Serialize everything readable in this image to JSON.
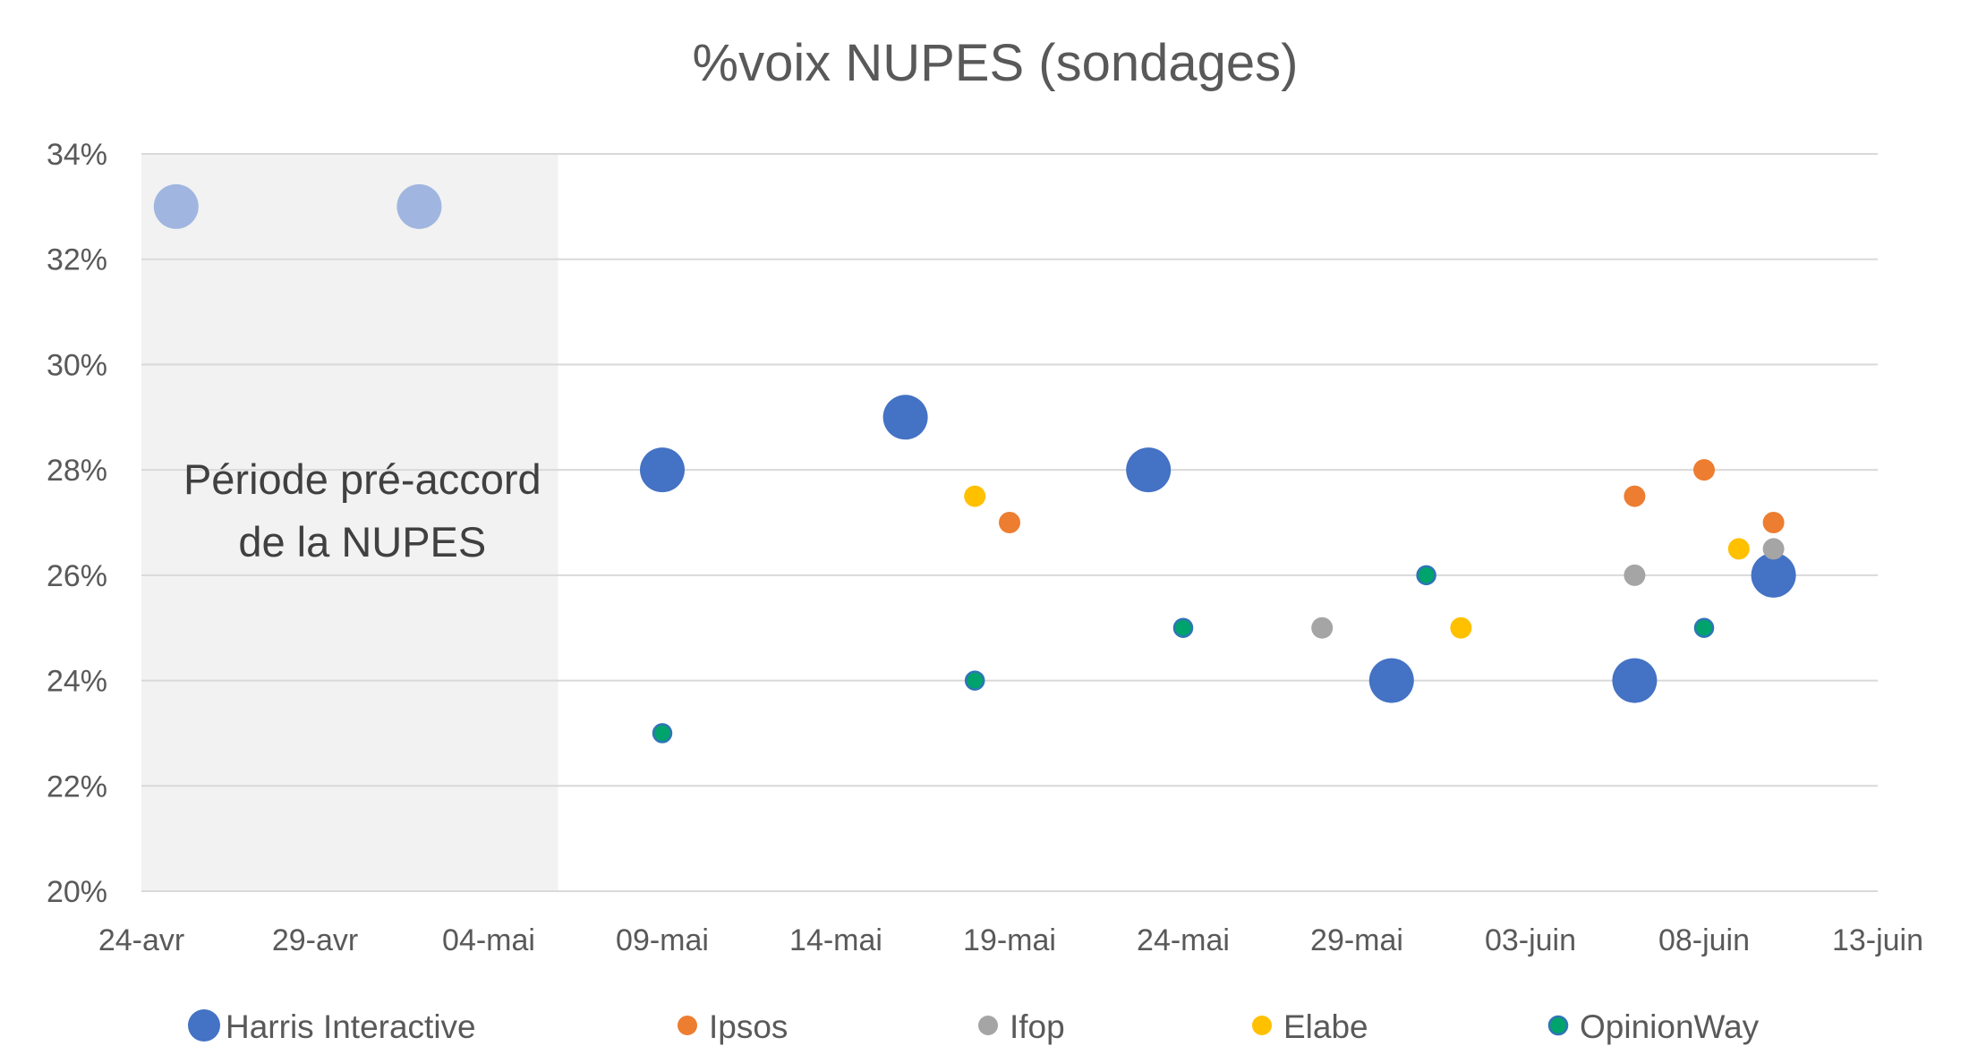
{
  "chart_data": {
    "type": "scatter",
    "title": "%voix NUPES (sondages)",
    "xlabel": "",
    "ylabel": "",
    "x_axis": {
      "type": "date",
      "min": "2022-04-24",
      "max": "2022-06-13",
      "ticks": [
        {
          "date": "2022-04-24",
          "label": "24-avr"
        },
        {
          "date": "2022-04-29",
          "label": "29-avr"
        },
        {
          "date": "2022-05-04",
          "label": "04-mai"
        },
        {
          "date": "2022-05-09",
          "label": "09-mai"
        },
        {
          "date": "2022-05-14",
          "label": "14-mai"
        },
        {
          "date": "2022-05-19",
          "label": "19-mai"
        },
        {
          "date": "2022-05-24",
          "label": "24-mai"
        },
        {
          "date": "2022-05-29",
          "label": "29-mai"
        },
        {
          "date": "2022-06-03",
          "label": "03-juin"
        },
        {
          "date": "2022-06-08",
          "label": "08-juin"
        },
        {
          "date": "2022-06-13",
          "label": "13-juin"
        }
      ]
    },
    "y_axis": {
      "min": 20,
      "max": 34,
      "ticks": [
        {
          "value": 20,
          "label": "20%"
        },
        {
          "value": 22,
          "label": "22%"
        },
        {
          "value": 24,
          "label": "24%"
        },
        {
          "value": 26,
          "label": "26%"
        },
        {
          "value": 28,
          "label": "28%"
        },
        {
          "value": 30,
          "label": "30%"
        },
        {
          "value": 32,
          "label": "32%"
        },
        {
          "value": 34,
          "label": "34%"
        }
      ]
    },
    "grid": true,
    "legend_position": "bottom",
    "shaded_region": {
      "from": "2022-04-24",
      "to": "2022-05-06",
      "label": [
        "Période pré-accord",
        "de la NUPES"
      ],
      "color": "#f2f2f2"
    },
    "series": [
      {
        "name": "Harris Interactive",
        "color": "#4472c4",
        "pre_accord_color": "#a0b6e0",
        "size": "large",
        "points": [
          {
            "x": "2022-04-25",
            "y": 33,
            "pre_accord": true
          },
          {
            "x": "2022-05-02",
            "y": 33,
            "pre_accord": true
          },
          {
            "x": "2022-05-09",
            "y": 28
          },
          {
            "x": "2022-05-16",
            "y": 29
          },
          {
            "x": "2022-05-23",
            "y": 28
          },
          {
            "x": "2022-05-30",
            "y": 24
          },
          {
            "x": "2022-06-06",
            "y": 24
          },
          {
            "x": "2022-06-10",
            "y": 26
          }
        ]
      },
      {
        "name": "Ipsos",
        "color": "#ed7d31",
        "size": "small",
        "points": [
          {
            "x": "2022-05-19",
            "y": 27
          },
          {
            "x": "2022-06-06",
            "y": 27.5
          },
          {
            "x": "2022-06-08",
            "y": 28
          },
          {
            "x": "2022-06-10",
            "y": 27
          }
        ]
      },
      {
        "name": "Ifop",
        "color": "#a5a5a5",
        "size": "small",
        "points": [
          {
            "x": "2022-05-28",
            "y": 25
          },
          {
            "x": "2022-06-06",
            "y": 26
          },
          {
            "x": "2022-06-10",
            "y": 26.5
          }
        ]
      },
      {
        "name": "Elabe",
        "color": "#ffc000",
        "size": "small",
        "points": [
          {
            "x": "2022-05-18",
            "y": 27.5
          },
          {
            "x": "2022-06-01",
            "y": 25
          },
          {
            "x": "2022-06-09",
            "y": 26.5
          }
        ]
      },
      {
        "name": "OpinionWay",
        "color": "#00a36c",
        "edge_color": "#2e75b6",
        "size": "tiny",
        "points": [
          {
            "x": "2022-05-09",
            "y": 23
          },
          {
            "x": "2022-05-18",
            "y": 24
          },
          {
            "x": "2022-05-24",
            "y": 25
          },
          {
            "x": "2022-05-31",
            "y": 26
          },
          {
            "x": "2022-06-08",
            "y": 25
          }
        ]
      }
    ]
  }
}
